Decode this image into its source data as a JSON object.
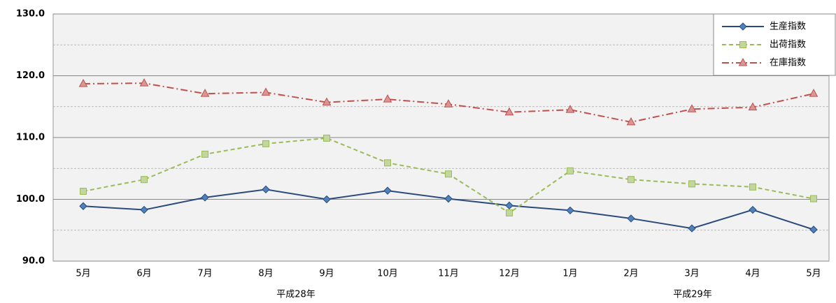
{
  "chart_data": {
    "type": "line",
    "categories": [
      "5月",
      "6月",
      "7月",
      "8月",
      "9月",
      "10月",
      "11月",
      "12月",
      "1月",
      "2月",
      "3月",
      "4月",
      "5月"
    ],
    "group_labels": [
      "平成28年",
      "平成29年"
    ],
    "series": [
      {
        "name": "生産指数",
        "color": "#2a4b7c",
        "marker": "diamond",
        "marker_color": "#4f81bd",
        "dash": "solid",
        "values": [
          98.9,
          98.3,
          100.3,
          101.6,
          100.0,
          101.4,
          100.1,
          99.0,
          98.2,
          96.9,
          95.3,
          98.3,
          95.1
        ]
      },
      {
        "name": "出荷指数",
        "color": "#9bbb59",
        "marker": "square",
        "marker_color": "#c3d69b",
        "dash": "dashed",
        "values": [
          101.3,
          103.2,
          107.3,
          109.0,
          109.9,
          105.9,
          104.1,
          97.8,
          104.6,
          103.2,
          102.5,
          102.0,
          100.1
        ]
      },
      {
        "name": "在庫指数",
        "color": "#c0504d",
        "marker": "triangle",
        "marker_color": "#d99694",
        "dash": "dashdot",
        "values": [
          118.7,
          118.8,
          117.1,
          117.3,
          115.7,
          116.2,
          115.4,
          114.1,
          114.5,
          112.5,
          114.6,
          114.9,
          117.1
        ]
      }
    ],
    "ylim": [
      90,
      130
    ],
    "yticks": [
      {
        "value": 90,
        "label": "90.0"
      },
      {
        "value": 100,
        "label": "100.0"
      },
      {
        "value": 110,
        "label": "110.0"
      },
      {
        "value": 120,
        "label": "120.0"
      },
      {
        "value": 130,
        "label": "130.0"
      }
    ],
    "minor_yticks": [
      95,
      105,
      115,
      125
    ],
    "grid": true,
    "legend": "top-right"
  }
}
